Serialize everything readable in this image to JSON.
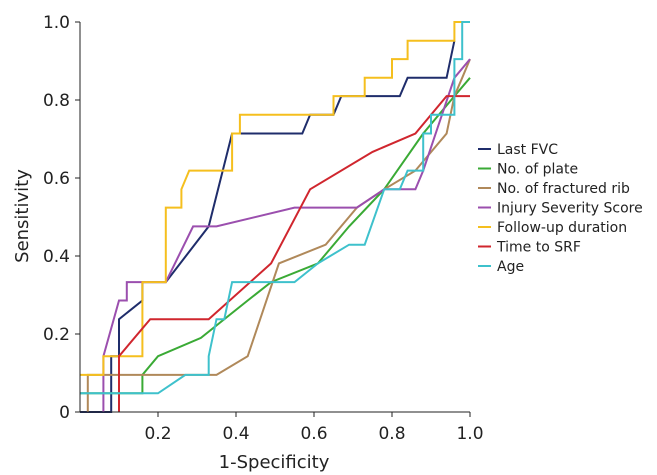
{
  "chart_data": {
    "type": "line",
    "title": "",
    "xlabel": "1-Specificity",
    "ylabel": "Sensitivity",
    "xlim": [
      0,
      1
    ],
    "ylim": [
      0,
      1
    ],
    "xticks": [
      "0.2",
      "0.4",
      "0.6",
      "0.8",
      "1.0"
    ],
    "yticks": [
      "0",
      "0.2",
      "0.4",
      "0.6",
      "0.8",
      "1.0"
    ],
    "grid": false,
    "legend_position": "right",
    "series": [
      {
        "name": "Last FVC",
        "color": "#1f2d6b",
        "points": [
          [
            0,
            0
          ],
          [
            0.08,
            0
          ],
          [
            0.08,
            0.143
          ],
          [
            0.1,
            0.143
          ],
          [
            0.1,
            0.238
          ],
          [
            0.16,
            0.286
          ],
          [
            0.16,
            0.333
          ],
          [
            0.22,
            0.333
          ],
          [
            0.33,
            0.476
          ],
          [
            0.39,
            0.714
          ],
          [
            0.57,
            0.714
          ],
          [
            0.59,
            0.762
          ],
          [
            0.65,
            0.762
          ],
          [
            0.67,
            0.81
          ],
          [
            0.82,
            0.81
          ],
          [
            0.84,
            0.857
          ],
          [
            0.94,
            0.857
          ],
          [
            0.96,
            0.952
          ]
        ]
      },
      {
        "name": "No. of plate",
        "color": "#3aaa35",
        "points": [
          [
            0,
            0.048
          ],
          [
            0.16,
            0.048
          ],
          [
            0.16,
            0.095
          ],
          [
            0.2,
            0.143
          ],
          [
            0.31,
            0.19
          ],
          [
            0.43,
            0.286
          ],
          [
            0.49,
            0.333
          ],
          [
            0.61,
            0.381
          ],
          [
            0.69,
            0.476
          ],
          [
            0.78,
            0.571
          ],
          [
            0.88,
            0.714
          ],
          [
            0.96,
            0.81
          ],
          [
            1.0,
            0.857
          ]
        ]
      },
      {
        "name": "No. of fractured rib",
        "color": "#b0895a",
        "points": [
          [
            0.02,
            0
          ],
          [
            0.02,
            0.095
          ],
          [
            0.35,
            0.095
          ],
          [
            0.43,
            0.143
          ],
          [
            0.51,
            0.381
          ],
          [
            0.63,
            0.429
          ],
          [
            0.71,
            0.524
          ],
          [
            0.78,
            0.571
          ],
          [
            0.86,
            0.619
          ],
          [
            0.94,
            0.714
          ],
          [
            0.96,
            0.81
          ],
          [
            0.98,
            0.857
          ],
          [
            1.0,
            0.905
          ]
        ]
      },
      {
        "name": "Injury Severity Score",
        "color": "#9b4fae",
        "points": [
          [
            0.06,
            0
          ],
          [
            0.06,
            0.143
          ],
          [
            0.1,
            0.286
          ],
          [
            0.12,
            0.286
          ],
          [
            0.12,
            0.333
          ],
          [
            0.22,
            0.333
          ],
          [
            0.29,
            0.476
          ],
          [
            0.35,
            0.476
          ],
          [
            0.55,
            0.524
          ],
          [
            0.71,
            0.524
          ],
          [
            0.78,
            0.571
          ],
          [
            0.86,
            0.571
          ],
          [
            0.88,
            0.619
          ],
          [
            0.96,
            0.857
          ],
          [
            1.0,
            0.905
          ]
        ]
      },
      {
        "name": "Follow-up duration",
        "color": "#f5bf1e",
        "points": [
          [
            0,
            0.095
          ],
          [
            0.06,
            0.095
          ],
          [
            0.06,
            0.143
          ],
          [
            0.16,
            0.143
          ],
          [
            0.16,
            0.333
          ],
          [
            0.22,
            0.333
          ],
          [
            0.22,
            0.524
          ],
          [
            0.26,
            0.524
          ],
          [
            0.26,
            0.571
          ],
          [
            0.28,
            0.619
          ],
          [
            0.39,
            0.619
          ],
          [
            0.39,
            0.714
          ],
          [
            0.41,
            0.714
          ],
          [
            0.41,
            0.762
          ],
          [
            0.65,
            0.762
          ],
          [
            0.65,
            0.81
          ],
          [
            0.73,
            0.81
          ],
          [
            0.73,
            0.857
          ],
          [
            0.8,
            0.857
          ],
          [
            0.8,
            0.905
          ],
          [
            0.84,
            0.905
          ],
          [
            0.84,
            0.952
          ],
          [
            0.96,
            0.952
          ],
          [
            0.96,
            1.0
          ],
          [
            1.0,
            1.0
          ]
        ]
      },
      {
        "name": "Time to SRF",
        "color": "#d0262e",
        "points": [
          [
            0.1,
            0
          ],
          [
            0.1,
            0.143
          ],
          [
            0.18,
            0.238
          ],
          [
            0.33,
            0.238
          ],
          [
            0.49,
            0.381
          ],
          [
            0.59,
            0.571
          ],
          [
            0.75,
            0.667
          ],
          [
            0.86,
            0.714
          ],
          [
            0.94,
            0.81
          ],
          [
            1.0,
            0.81
          ]
        ]
      },
      {
        "name": "Age",
        "color": "#3ec1cc",
        "points": [
          [
            0,
            0.048
          ],
          [
            0.2,
            0.048
          ],
          [
            0.27,
            0.095
          ],
          [
            0.33,
            0.095
          ],
          [
            0.33,
            0.143
          ],
          [
            0.35,
            0.238
          ],
          [
            0.37,
            0.238
          ],
          [
            0.39,
            0.333
          ],
          [
            0.55,
            0.333
          ],
          [
            0.61,
            0.381
          ],
          [
            0.69,
            0.429
          ],
          [
            0.73,
            0.429
          ],
          [
            0.78,
            0.571
          ],
          [
            0.82,
            0.571
          ],
          [
            0.84,
            0.619
          ],
          [
            0.88,
            0.619
          ],
          [
            0.88,
            0.714
          ],
          [
            0.9,
            0.714
          ],
          [
            0.9,
            0.762
          ],
          [
            0.96,
            0.762
          ],
          [
            0.96,
            0.905
          ],
          [
            0.98,
            0.905
          ],
          [
            0.98,
            1.0
          ],
          [
            1.0,
            1.0
          ]
        ]
      }
    ]
  }
}
